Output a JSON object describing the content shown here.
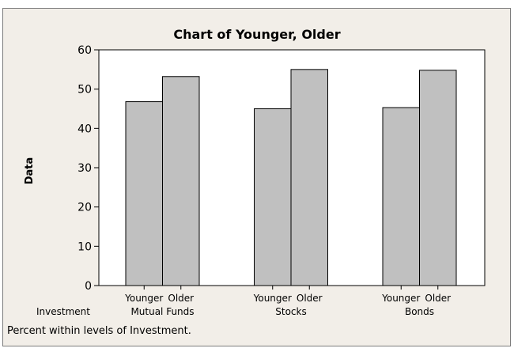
{
  "chart_data": {
    "type": "bar",
    "title": "Chart of Younger, Older",
    "ylabel": "Data",
    "xlabel": "",
    "ylim": [
      0,
      60
    ],
    "yticks": [
      0,
      10,
      20,
      30,
      40,
      50,
      60
    ],
    "group_variable_label": "Investment",
    "groups": [
      "Mutual Funds",
      "Stocks",
      "Bonds"
    ],
    "series": [
      {
        "name": "Younger",
        "values": [
          46.8,
          45.0,
          45.3
        ]
      },
      {
        "name": "Older",
        "values": [
          53.2,
          55.0,
          54.8
        ]
      }
    ],
    "footnote": "Percent within levels of Investment.",
    "bar_color": "#c0c0c0",
    "grid": false,
    "legend": "none"
  }
}
